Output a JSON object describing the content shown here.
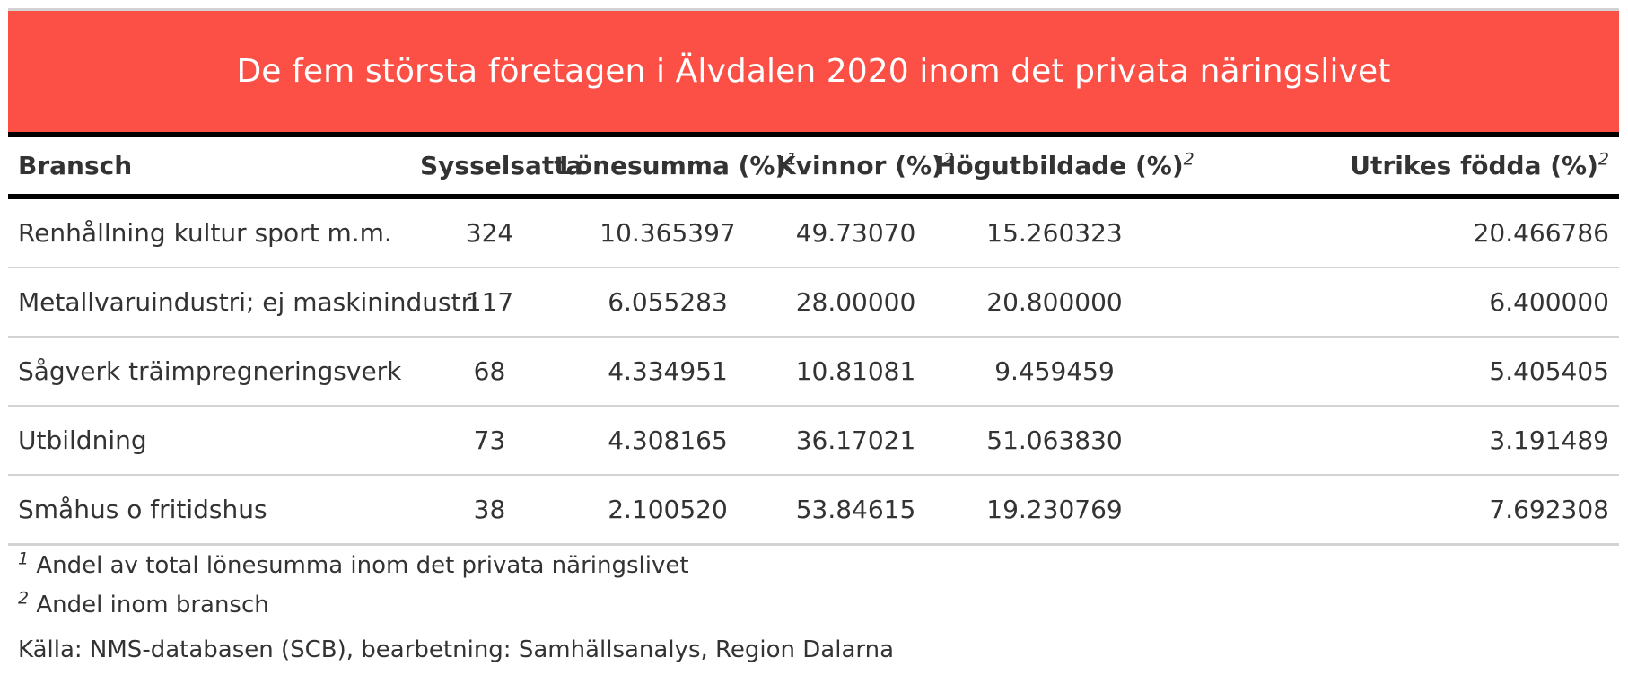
{
  "chart_data": {
    "type": "table",
    "title": "De fem största företagen i Älvdalen 2020 inom det privata näringslivet",
    "columns": [
      {
        "label": "Bransch",
        "note": ""
      },
      {
        "label": "Sysselsatta",
        "note": ""
      },
      {
        "label": "Lönesumma (%)",
        "note": "1"
      },
      {
        "label": "Kvinnor (%)",
        "note": "2"
      },
      {
        "label": "Högutbildade (%)",
        "note": "2"
      },
      {
        "label": "Utrikes födda (%)",
        "note": "2"
      }
    ],
    "rows": [
      [
        "Renhållning kultur sport m.m.",
        "324",
        "10.365397",
        "49.73070",
        "15.260323",
        "20.466786"
      ],
      [
        "Metallvaruindustri; ej maskinindustri",
        "117",
        "6.055283",
        "28.00000",
        "20.800000",
        "6.400000"
      ],
      [
        "Sågverk träimpregneringsverk",
        "68",
        "4.334951",
        "10.81081",
        "9.459459",
        "5.405405"
      ],
      [
        "Utbildning",
        "73",
        "4.308165",
        "36.17021",
        "51.063830",
        "3.191489"
      ],
      [
        "Småhus o fritidshus",
        "38",
        "2.100520",
        "53.84615",
        "19.230769",
        "7.692308"
      ]
    ],
    "footnotes": [
      {
        "mark": "1",
        "text": "Andel av total lönesumma inom det privata näringslivet"
      },
      {
        "mark": "2",
        "text": "Andel inom bransch"
      }
    ],
    "source": "Källa: NMS-databasen (SCB), bearbetning: Samhällsanalys, Region Dalarna"
  },
  "colors": {
    "title_background": "#fc5046",
    "title_text": "#ffffff",
    "rule": "#000000",
    "row_divider": "#d3d3d3",
    "text": "#333333"
  }
}
